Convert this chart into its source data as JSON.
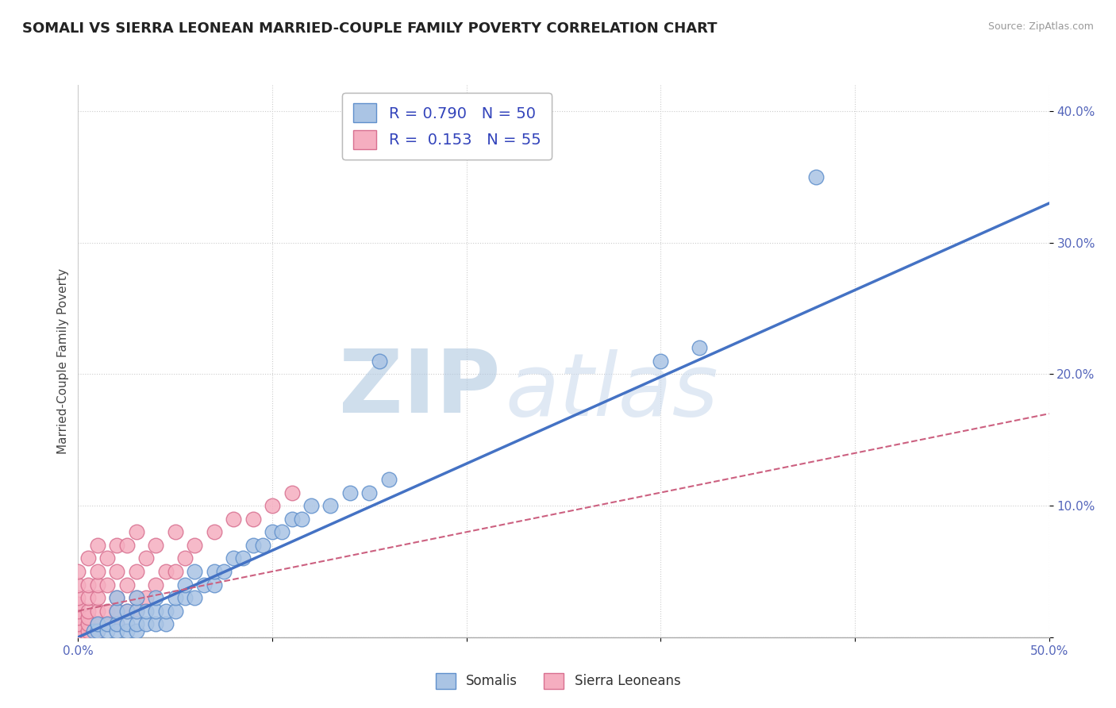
{
  "title": "SOMALI VS SIERRA LEONEAN MARRIED-COUPLE FAMILY POVERTY CORRELATION CHART",
  "source": "Source: ZipAtlas.com",
  "ylabel": "Married-Couple Family Poverty",
  "xlim": [
    0.0,
    0.5
  ],
  "ylim": [
    0.0,
    0.42
  ],
  "xticks": [
    0.0,
    0.1,
    0.2,
    0.3,
    0.4,
    0.5
  ],
  "yticks": [
    0.0,
    0.1,
    0.2,
    0.3,
    0.4
  ],
  "somali_R": 0.79,
  "somali_N": 50,
  "sierra_R": 0.153,
  "sierra_N": 55,
  "somali_color": "#aac4e4",
  "sierra_color": "#f5aec0",
  "somali_edge_color": "#6090cc",
  "sierra_edge_color": "#d87090",
  "somali_line_color": "#4472C4",
  "sierra_line_color": "#cc6080",
  "background_color": "#ffffff",
  "grid_color": "#cccccc",
  "watermark": "ZIPatlas",
  "watermark_color_zip": "#b8cce4",
  "watermark_color_atlas": "#d0d8e8",
  "title_fontsize": 13,
  "legend_fontsize": 13,
  "axis_label_fontsize": 11,
  "tick_fontsize": 11,
  "tick_color": "#5566bb",
  "somali_x": [
    0.008,
    0.01,
    0.01,
    0.015,
    0.015,
    0.02,
    0.02,
    0.02,
    0.02,
    0.025,
    0.025,
    0.025,
    0.03,
    0.03,
    0.03,
    0.03,
    0.035,
    0.035,
    0.04,
    0.04,
    0.04,
    0.045,
    0.045,
    0.05,
    0.05,
    0.055,
    0.055,
    0.06,
    0.06,
    0.065,
    0.07,
    0.07,
    0.075,
    0.08,
    0.085,
    0.09,
    0.095,
    0.1,
    0.105,
    0.11,
    0.115,
    0.12,
    0.13,
    0.14,
    0.15,
    0.16,
    0.155,
    0.3,
    0.32,
    0.38
  ],
  "somali_y": [
    0.005,
    0.005,
    0.01,
    0.005,
    0.01,
    0.005,
    0.01,
    0.02,
    0.03,
    0.005,
    0.01,
    0.02,
    0.005,
    0.01,
    0.02,
    0.03,
    0.01,
    0.02,
    0.01,
    0.02,
    0.03,
    0.01,
    0.02,
    0.02,
    0.03,
    0.03,
    0.04,
    0.03,
    0.05,
    0.04,
    0.04,
    0.05,
    0.05,
    0.06,
    0.06,
    0.07,
    0.07,
    0.08,
    0.08,
    0.09,
    0.09,
    0.1,
    0.1,
    0.11,
    0.11,
    0.12,
    0.21,
    0.21,
    0.22,
    0.35
  ],
  "sierra_x": [
    0.0,
    0.0,
    0.0,
    0.0,
    0.0,
    0.0,
    0.0,
    0.0,
    0.0,
    0.0,
    0.005,
    0.005,
    0.005,
    0.005,
    0.005,
    0.005,
    0.005,
    0.005,
    0.01,
    0.01,
    0.01,
    0.01,
    0.01,
    0.01,
    0.01,
    0.015,
    0.015,
    0.015,
    0.015,
    0.02,
    0.02,
    0.02,
    0.02,
    0.02,
    0.025,
    0.025,
    0.025,
    0.03,
    0.03,
    0.03,
    0.03,
    0.035,
    0.035,
    0.04,
    0.04,
    0.045,
    0.05,
    0.05,
    0.055,
    0.06,
    0.07,
    0.08,
    0.09,
    0.1,
    0.11
  ],
  "sierra_y": [
    0.0,
    0.0,
    0.005,
    0.01,
    0.015,
    0.02,
    0.025,
    0.03,
    0.04,
    0.05,
    0.0,
    0.005,
    0.01,
    0.015,
    0.02,
    0.03,
    0.04,
    0.06,
    0.005,
    0.01,
    0.02,
    0.03,
    0.04,
    0.05,
    0.07,
    0.01,
    0.02,
    0.04,
    0.06,
    0.01,
    0.02,
    0.03,
    0.05,
    0.07,
    0.02,
    0.04,
    0.07,
    0.02,
    0.03,
    0.05,
    0.08,
    0.03,
    0.06,
    0.04,
    0.07,
    0.05,
    0.05,
    0.08,
    0.06,
    0.07,
    0.08,
    0.09,
    0.09,
    0.1,
    0.11
  ],
  "somali_line_x": [
    0.0,
    0.5
  ],
  "somali_line_y": [
    0.0,
    0.33
  ],
  "sierra_line_x": [
    0.0,
    0.5
  ],
  "sierra_line_y": [
    0.02,
    0.17
  ]
}
